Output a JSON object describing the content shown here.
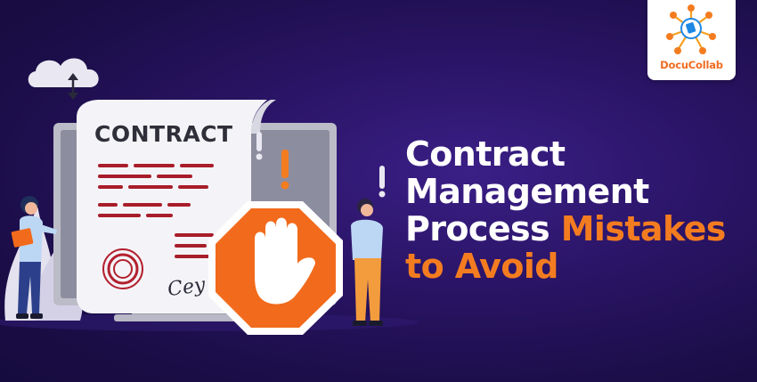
{
  "brand": {
    "name": "DocuCollab",
    "accent_orange": "#f47c20",
    "accent_blue": "#1e88e5"
  },
  "headline": {
    "line1": "Contract",
    "line2": "Management",
    "line3_white": "Process",
    "line3_orange": "Mistakes",
    "line4_orange": "to Avoid"
  },
  "illustration": {
    "document_title": "CONTRACT",
    "signature_text": "Cey"
  },
  "colors": {
    "background": "#231259",
    "text_white": "#ffffff",
    "stop_sign": "#f26a1b",
    "document_lines": "#a81d2a"
  }
}
